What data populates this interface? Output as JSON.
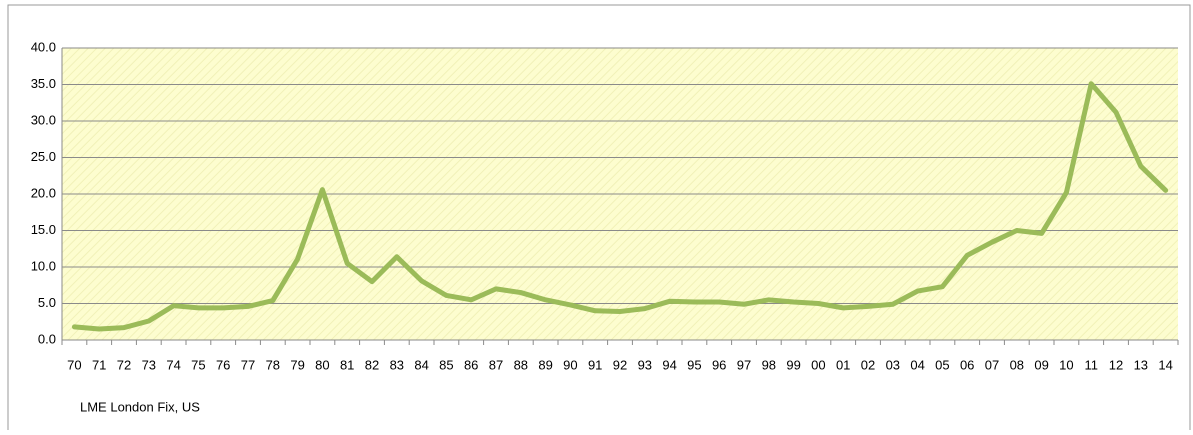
{
  "chart_data": {
    "type": "line",
    "categories": [
      "70",
      "71",
      "72",
      "73",
      "74",
      "75",
      "76",
      "77",
      "78",
      "79",
      "80",
      "81",
      "82",
      "83",
      "84",
      "85",
      "86",
      "87",
      "88",
      "89",
      "90",
      "91",
      "92",
      "93",
      "94",
      "95",
      "96",
      "97",
      "98",
      "99",
      "00",
      "01",
      "02",
      "03",
      "04",
      "05",
      "06",
      "07",
      "08",
      "09",
      "10",
      "11",
      "12",
      "13",
      "14"
    ],
    "series": [
      {
        "name": "LME London Fix, US",
        "color": "#9bbb59",
        "values": [
          1.8,
          1.5,
          1.7,
          2.6,
          4.7,
          4.4,
          4.4,
          4.6,
          5.4,
          11.1,
          20.6,
          10.5,
          8.0,
          11.4,
          8.1,
          6.1,
          5.5,
          7.0,
          6.5,
          5.5,
          4.8,
          4.0,
          3.9,
          4.3,
          5.3,
          5.2,
          5.2,
          4.9,
          5.5,
          5.2,
          5.0,
          4.4,
          4.6,
          4.9,
          6.7,
          7.3,
          11.6,
          13.4,
          15.0,
          14.6,
          20.2,
          35.1,
          31.2,
          23.8,
          20.5
        ]
      }
    ],
    "ylim": [
      0,
      40
    ],
    "yticks": [
      {
        "value": 0,
        "label": "0.0"
      },
      {
        "value": 5,
        "label": "5.0"
      },
      {
        "value": 10,
        "label": "10.0"
      },
      {
        "value": 15,
        "label": "15.0"
      },
      {
        "value": 20,
        "label": "20.0"
      },
      {
        "value": 25,
        "label": "25.0"
      },
      {
        "value": 30,
        "label": "30.0"
      },
      {
        "value": 35,
        "label": "35.0"
      },
      {
        "value": 40,
        "label": "40.0"
      }
    ],
    "grid": true
  }
}
